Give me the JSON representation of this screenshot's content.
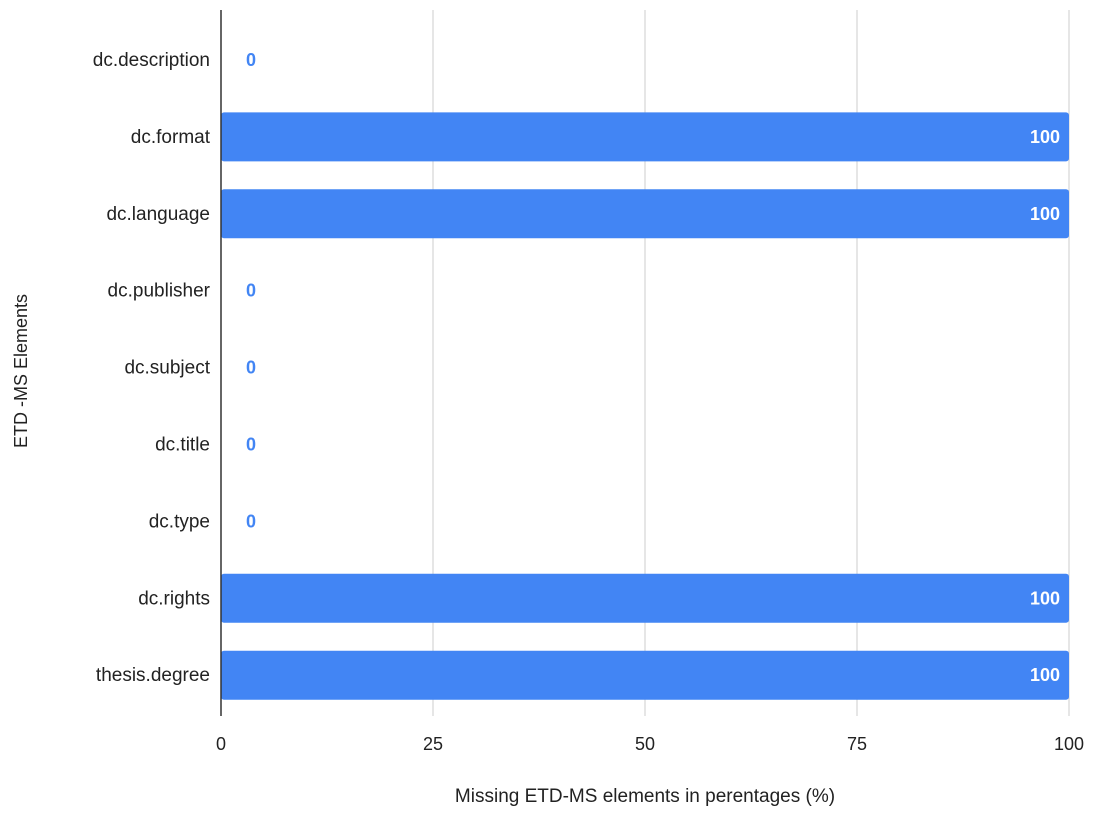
{
  "chart_data": {
    "type": "bar",
    "orientation": "horizontal",
    "categories": [
      "dc.description",
      "dc.format",
      "dc.language",
      "dc.publisher",
      "dc.subject",
      "dc.title",
      "dc.type",
      "dc.rights",
      "thesis.degree"
    ],
    "values": [
      0,
      100,
      100,
      0,
      0,
      0,
      0,
      100,
      100
    ],
    "data_labels": [
      "0",
      "100",
      "100",
      "0",
      "0",
      "0",
      "0",
      "100",
      "100"
    ],
    "title": "",
    "xlabel": "Missing ETD-MS elements in perentages (%)",
    "ylabel": "ETD -MS Elements",
    "xlim": [
      0,
      100
    ],
    "xticks": [
      "0",
      "25",
      "50",
      "75",
      "100"
    ],
    "grid": true,
    "legend": "none",
    "colors": {
      "bar": "#4285f4",
      "outside_label": "#4285f4",
      "inside_label": "#ffffff",
      "grid": "#cccccc",
      "axis": "#333333",
      "text": "#222222"
    }
  }
}
